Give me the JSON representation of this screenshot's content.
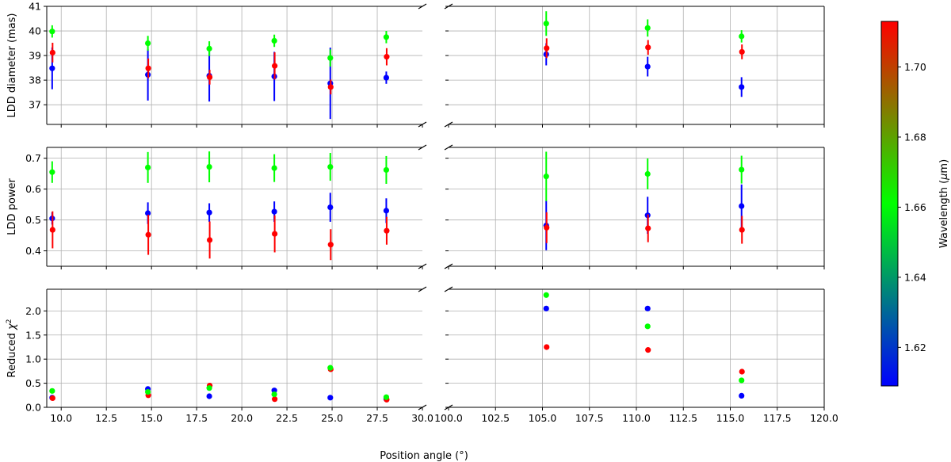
{
  "chart_data": {
    "type": "scatter",
    "xlabel": "Position angle (°)",
    "broken_x_axis": true,
    "x_segments": [
      {
        "range": [
          9.2,
          30.0
        ],
        "ticks": [
          "10.0",
          "12.5",
          "15.0",
          "17.5",
          "20.0",
          "22.5",
          "25.0",
          "27.5",
          "30.0"
        ]
      },
      {
        "range": [
          100.0,
          120.0
        ],
        "ticks": [
          "100.0",
          "102.5",
          "105.0",
          "107.5",
          "110.0",
          "112.5",
          "115.0",
          "117.5",
          "120.0"
        ]
      }
    ],
    "grid": true,
    "colorbar": {
      "label_main": "Wavelength (",
      "label_mu": "μ",
      "label_unit": "m)",
      "range": [
        1.609,
        1.713
      ],
      "ticks": [
        "1.62",
        "1.64",
        "1.66",
        "1.68",
        "1.70"
      ],
      "colors": [
        "#0000ff",
        "#00ff00",
        "#ff0000"
      ]
    },
    "series_colors": {
      "blue": "#0000ff",
      "green": "#00ff00",
      "red": "#ff0000"
    },
    "panels": [
      {
        "ylabel": "LDD diameter (mas)",
        "ylim": [
          36.2,
          41.0
        ],
        "yticks": [
          "37",
          "38",
          "39",
          "40",
          "41"
        ],
        "x": [
          9.5,
          14.8,
          18.2,
          21.8,
          24.9,
          28.0,
          105.2,
          110.6,
          115.6
        ],
        "blue": {
          "y": [
            38.48,
            38.22,
            38.18,
            38.15,
            37.87,
            38.1,
            39.05,
            38.55,
            37.72
          ],
          "err": [
            0.85,
            1.05,
            1.05,
            1.0,
            1.45,
            0.25,
            0.45,
            0.4,
            0.4
          ]
        },
        "green": {
          "y": [
            39.98,
            39.5,
            39.28,
            39.6,
            38.9,
            39.75,
            40.3,
            40.12,
            39.78
          ],
          "err": [
            0.25,
            0.3,
            0.3,
            0.25,
            0.35,
            0.25,
            0.5,
            0.35,
            0.25
          ]
        },
        "red": {
          "y": [
            39.12,
            38.48,
            38.12,
            38.58,
            37.72,
            38.95,
            39.3,
            39.33,
            39.15
          ],
          "err": [
            0.4,
            0.4,
            0.3,
            0.55,
            0.3,
            0.35,
            0.4,
            0.3,
            0.3
          ]
        }
      },
      {
        "ylabel": "LDD power",
        "ylim": [
          0.35,
          0.735
        ],
        "yticks": [
          "0.4",
          "0.5",
          "0.6",
          "0.7"
        ],
        "x": [
          9.5,
          14.8,
          18.2,
          21.8,
          24.9,
          28.0,
          105.2,
          110.6,
          115.6
        ],
        "blue": {
          "y": [
            0.505,
            0.522,
            0.524,
            0.527,
            0.541,
            0.53,
            0.482,
            0.515,
            0.545
          ],
          "err": [
            0.02,
            0.035,
            0.03,
            0.033,
            0.047,
            0.04,
            0.08,
            0.06,
            0.07
          ]
        },
        "green": {
          "y": [
            0.655,
            0.67,
            0.672,
            0.668,
            0.672,
            0.662,
            0.641,
            0.649,
            0.663
          ],
          "err": [
            0.035,
            0.05,
            0.05,
            0.045,
            0.045,
            0.045,
            0.08,
            0.05,
            0.045
          ]
        },
        "red": {
          "y": [
            0.468,
            0.452,
            0.435,
            0.455,
            0.42,
            0.465,
            0.475,
            0.473,
            0.468
          ],
          "err": [
            0.06,
            0.065,
            0.06,
            0.06,
            0.05,
            0.045,
            0.05,
            0.045,
            0.045
          ]
        }
      },
      {
        "ylabel_main": "Reduced ",
        "ylabel_sym": "χ",
        "ylabel_sup": "2",
        "ylim": [
          0.0,
          2.45
        ],
        "yticks": [
          "0.0",
          "0.5",
          "1.0",
          "1.5",
          "2.0"
        ],
        "x": [
          9.5,
          14.8,
          18.2,
          21.8,
          24.9,
          28.0,
          105.2,
          110.6,
          115.6
        ],
        "blue": {
          "y": [
            0.2,
            0.38,
            0.23,
            0.35,
            0.2,
            0.17,
            2.05,
            2.05,
            0.24
          ]
        },
        "green": {
          "y": [
            0.34,
            0.32,
            0.4,
            0.27,
            0.82,
            0.21,
            2.33,
            1.68,
            0.56
          ]
        },
        "red": {
          "y": [
            0.19,
            0.25,
            0.45,
            0.17,
            0.79,
            0.16,
            1.25,
            1.19,
            0.74
          ]
        }
      }
    ]
  }
}
